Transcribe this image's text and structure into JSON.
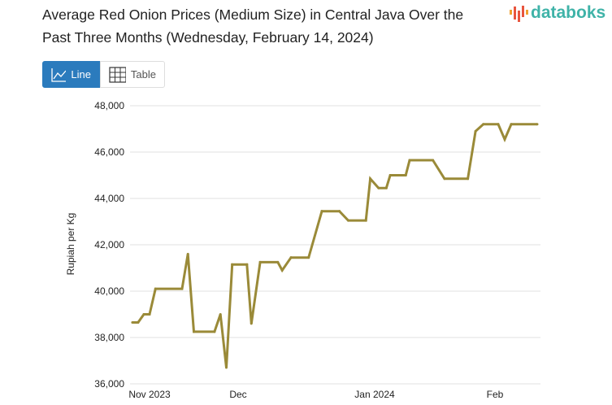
{
  "title": "Average Red Onion Prices (Medium Size) in Central Java Over the Past Three Months (Wednesday, February 14, 2024)",
  "brand": "databoks",
  "toggle": {
    "line_label": "Line",
    "table_label": "Table",
    "active": "Line"
  },
  "colors": {
    "line": "#9a8a38",
    "accent": "#2b7bbd",
    "grid": "#e0e0e0"
  },
  "chart_data": {
    "type": "line",
    "title": "Average Red Onion Prices (Medium Size) in Central Java Over the Past Three Months (Wednesday, February 14, 2024)",
    "xlabel": "",
    "ylabel": "Rupiah per Kg",
    "ylim": [
      36000,
      48000
    ],
    "yticks": [
      "36,000",
      "38,000",
      "40,000",
      "42,000",
      "44,000",
      "46,000",
      "48,000"
    ],
    "xticks": [
      "Nov 2023",
      "Dec",
      "Jan 2024",
      "Feb"
    ],
    "grid": true,
    "legend": "none",
    "series": [
      {
        "x": [
          "2023-10-26",
          "2023-10-28",
          "2023-10-30",
          "2023-11-01",
          "2023-11-03",
          "2023-11-12",
          "2023-11-14",
          "2023-11-16",
          "2023-11-23",
          "2023-11-25",
          "2023-11-27",
          "2023-11-29",
          "2023-12-03",
          "2023-12-04",
          "2023-12-06",
          "2023-12-10",
          "2023-12-11",
          "2023-12-13",
          "2023-12-17",
          "2023-12-20",
          "2023-12-24",
          "2023-12-26",
          "2023-12-30",
          "2023-12-31",
          "2024-01-02",
          "2024-01-04",
          "2024-01-05",
          "2024-01-09",
          "2024-01-10",
          "2024-01-16",
          "2024-01-19",
          "2024-01-25",
          "2024-01-27",
          "2024-01-29",
          "2024-02-02",
          "2024-02-04",
          "2024-02-06",
          "2024-02-14"
        ],
        "values": [
          38650,
          38650,
          39000,
          39000,
          40100,
          40100,
          41600,
          38250,
          38250,
          39000,
          36700,
          41150,
          41150,
          38600,
          41250,
          41250,
          40900,
          41450,
          41450,
          43450,
          43450,
          43050,
          43050,
          44850,
          44450,
          44450,
          45000,
          45000,
          45650,
          45650,
          44850,
          44850,
          46900,
          47200,
          47200,
          46550,
          47200,
          47200
        ]
      }
    ]
  }
}
